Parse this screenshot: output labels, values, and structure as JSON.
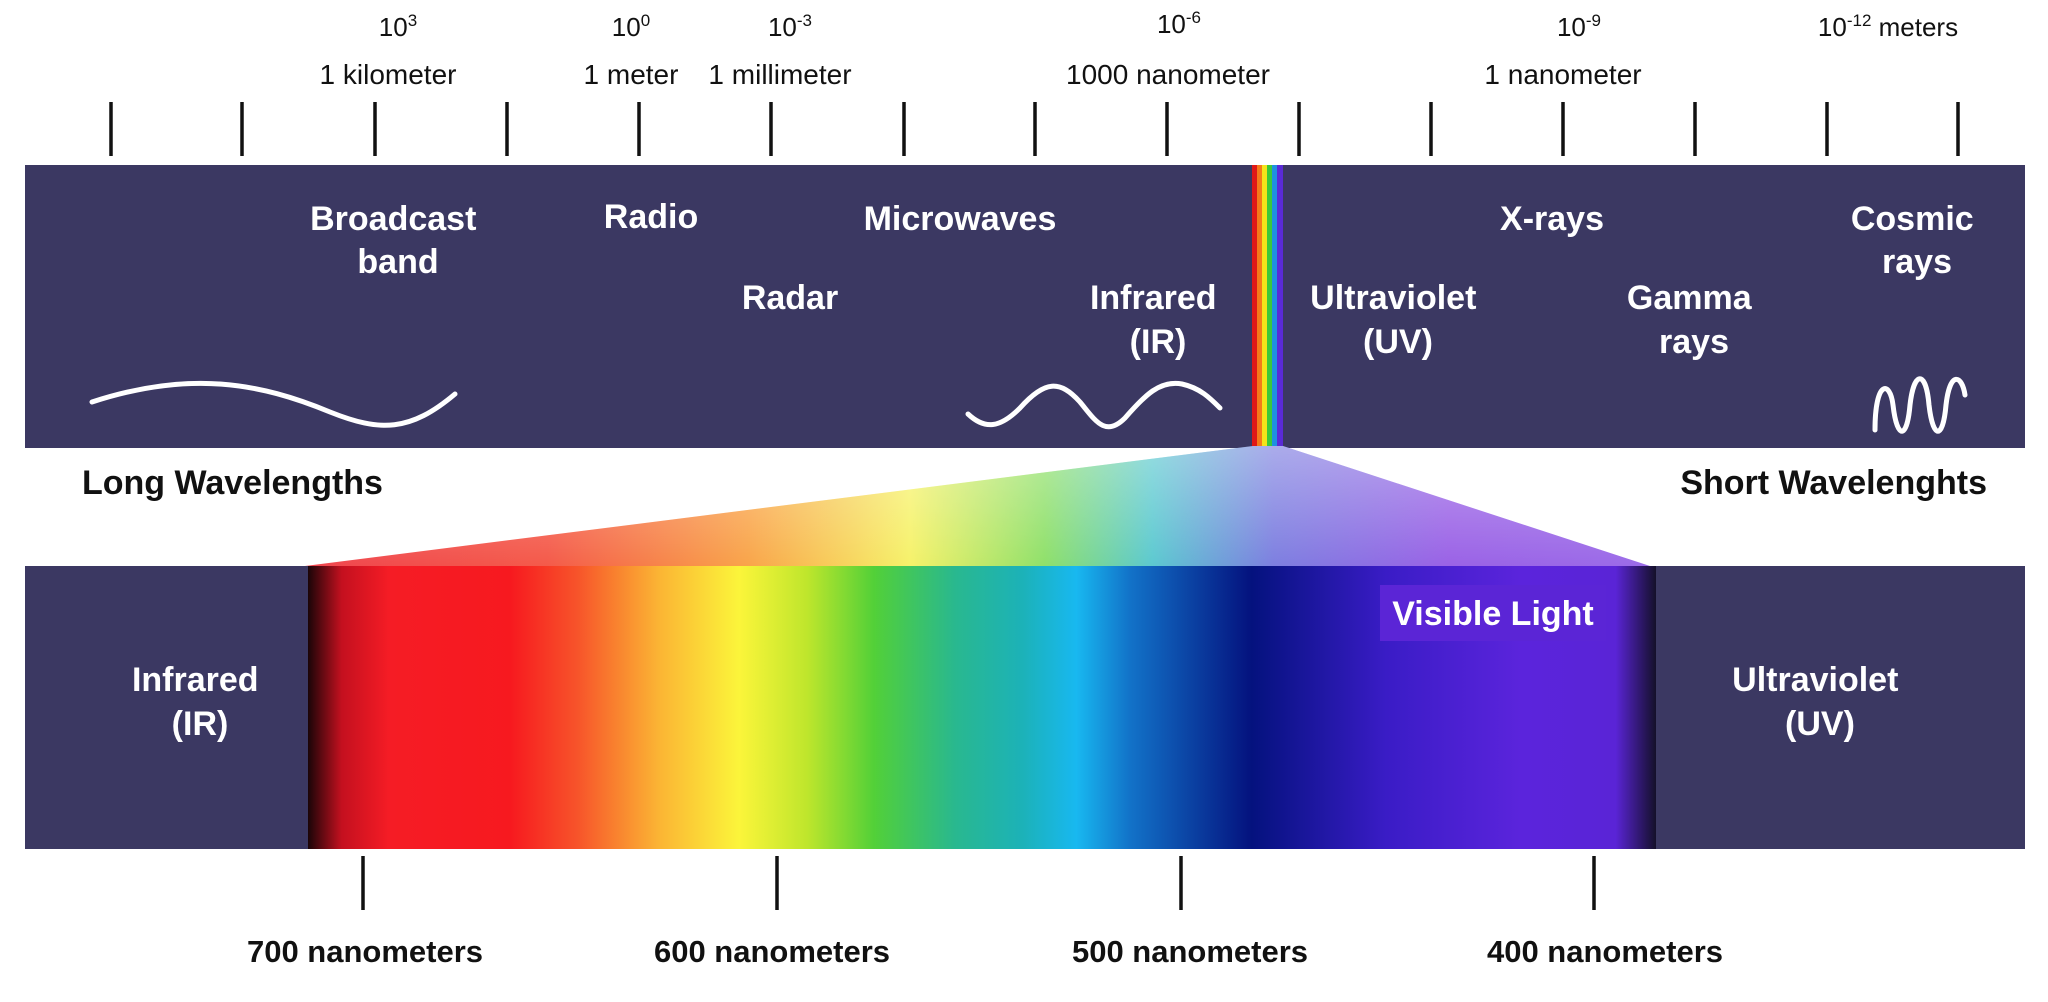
{
  "colors": {
    "band_background": "#3b3862",
    "wave_stroke": "#ffffff",
    "tick": "#111111",
    "visible_badge": "#5b25d6"
  },
  "scale": {
    "exponents": [
      {
        "base": "10",
        "power": "3",
        "suffix": ""
      },
      {
        "base": "10",
        "power": "0",
        "suffix": ""
      },
      {
        "base": "10",
        "power": "-3",
        "suffix": ""
      },
      {
        "base": "10",
        "power": "-6",
        "suffix": ""
      },
      {
        "base": "10",
        "power": "-9",
        "suffix": ""
      },
      {
        "base": "10",
        "power": "-12",
        "suffix": " meters"
      }
    ],
    "unit_labels": [
      "1 kilometer",
      "1 meter",
      "1 millimeter",
      "1000 nanometer",
      "1 nanometer"
    ]
  },
  "spectrum_bands": {
    "broadcast": [
      "Broadcast",
      "band"
    ],
    "radio": "Radio",
    "microwaves": "Microwaves",
    "radar": "Radar",
    "infrared": [
      "Infrared",
      "(IR)"
    ],
    "ultraviolet": [
      "Ultraviolet",
      "(UV)"
    ],
    "xrays": "X-rays",
    "gamma": [
      "Gamma",
      "rays"
    ],
    "cosmic": [
      "Cosmic",
      "rays"
    ]
  },
  "directions": {
    "long": "Long Wavelengths",
    "short": "Short Wavelenghts"
  },
  "visible": {
    "title": "Visible Light",
    "left_region": [
      "Infrared",
      "(IR)"
    ],
    "right_region": [
      "Ultraviolet",
      "(UV)"
    ],
    "nm_labels": [
      "700 nanometers",
      "600 nanometers",
      "500 nanometers",
      "400 nanometers"
    ]
  }
}
